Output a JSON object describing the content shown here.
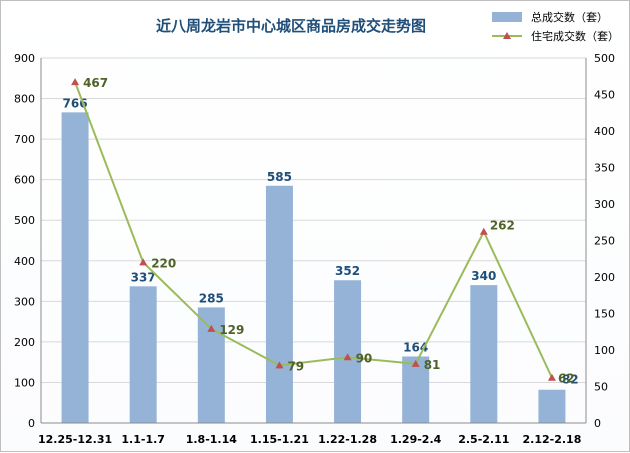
{
  "chart_data": {
    "type": "bar+line",
    "title": "近八周龙岩市中心城区商品房成交走势图",
    "categories": [
      "12.25-12.31",
      "1.1-1.7",
      "1.8-1.14",
      "1.15-1.21",
      "1.22-1.28",
      "1.29-2.4",
      "2.5-2.11",
      "2.12-2.18"
    ],
    "series": [
      {
        "name": "总成交数（套）",
        "type": "bar",
        "axis": "left",
        "values": [
          766,
          337,
          285,
          585,
          352,
          164,
          340,
          82
        ],
        "color": "#95b3d7"
      },
      {
        "name": "住宅成交数（套）",
        "type": "line",
        "axis": "right",
        "values": [
          467,
          220,
          129,
          79,
          90,
          81,
          262,
          62
        ],
        "color": "#9bbb59",
        "marker_color": "#c0504d"
      }
    ],
    "y_left": {
      "min": 0,
      "max": 900,
      "ticks": [
        0,
        100,
        200,
        300,
        400,
        500,
        600,
        700,
        800,
        900
      ]
    },
    "y_right": {
      "min": 0,
      "max": 500,
      "ticks": [
        0,
        50,
        100,
        150,
        200,
        250,
        300,
        350,
        400,
        450,
        500
      ]
    },
    "grid": true,
    "legend_position": "top-right",
    "colors": {
      "bar_label": "#1f4e79",
      "line_label": "#4f6228",
      "title": "#1f4e79",
      "grid": "#d9d9d9"
    }
  }
}
